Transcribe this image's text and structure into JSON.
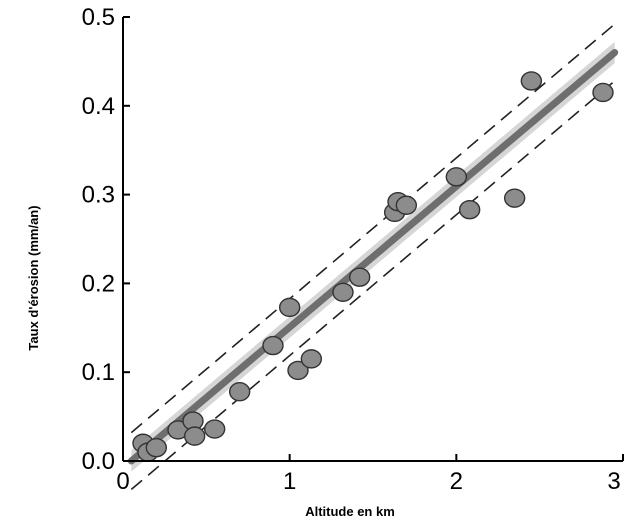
{
  "chart_data": {
    "type": "scatter",
    "title": "",
    "xlabel": "Altitude en km",
    "ylabel": "Taux d'érosion (mm/an)",
    "xlim": [
      0,
      3
    ],
    "ylim": [
      0,
      0.5
    ],
    "x_ticks": [
      "0",
      "1",
      "2",
      "3"
    ],
    "y_ticks": [
      "0.0",
      "0.1",
      "0.2",
      "0.3",
      "0.4",
      "0.5"
    ],
    "grid": false,
    "points": [
      {
        "x": 0.12,
        "y": 0.02
      },
      {
        "x": 0.15,
        "y": 0.01
      },
      {
        "x": 0.2,
        "y": 0.015
      },
      {
        "x": 0.33,
        "y": 0.035
      },
      {
        "x": 0.42,
        "y": 0.045
      },
      {
        "x": 0.43,
        "y": 0.028
      },
      {
        "x": 0.55,
        "y": 0.036
      },
      {
        "x": 0.7,
        "y": 0.078
      },
      {
        "x": 0.9,
        "y": 0.13
      },
      {
        "x": 1.0,
        "y": 0.173
      },
      {
        "x": 1.05,
        "y": 0.102
      },
      {
        "x": 1.13,
        "y": 0.115
      },
      {
        "x": 1.32,
        "y": 0.19
      },
      {
        "x": 1.42,
        "y": 0.207
      },
      {
        "x": 1.63,
        "y": 0.28
      },
      {
        "x": 1.65,
        "y": 0.292
      },
      {
        "x": 1.7,
        "y": 0.288
      },
      {
        "x": 2.0,
        "y": 0.32
      },
      {
        "x": 2.08,
        "y": 0.283
      },
      {
        "x": 2.35,
        "y": 0.296
      },
      {
        "x": 2.45,
        "y": 0.428
      },
      {
        "x": 2.88,
        "y": 0.415
      }
    ],
    "regression": {
      "x": [
        0.05,
        2.95
      ],
      "y": [
        0.0,
        0.46
      ]
    },
    "confidence_band": {
      "offset": 0.02
    },
    "colors": {
      "points_fill": "#8c8c8c",
      "points_stroke": "#333333",
      "regression_line": "#6e6e6e",
      "band": "#d6d6d6",
      "dashed": "#222222"
    }
  }
}
